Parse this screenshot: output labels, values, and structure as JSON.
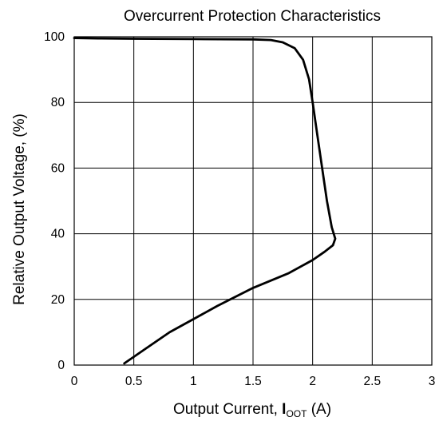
{
  "chart_data": {
    "type": "line",
    "title": "Overcurrent Protection Characteristics",
    "xlabel": "Output Current, ",
    "xlabel_bold": "I",
    "xlabel_sub": "OOT",
    "xlabel_unit": " (A)",
    "ylabel": "Relative Output Voltage, (%)",
    "xlim": [
      0,
      3
    ],
    "ylim": [
      0,
      100
    ],
    "x_ticks": [
      0,
      0.5,
      1,
      1.5,
      2,
      2.5,
      3
    ],
    "x_tick_labels": [
      "0",
      "0.5",
      "1",
      "1.5",
      "2",
      "2.5",
      "3"
    ],
    "y_ticks": [
      0,
      20,
      40,
      60,
      80,
      100
    ],
    "y_tick_labels": [
      "0",
      "20",
      "40",
      "60",
      "80",
      "100"
    ],
    "grid": true,
    "series": [
      {
        "points": [
          [
            0.0,
            99.6
          ],
          [
            0.2,
            99.5
          ],
          [
            0.5,
            99.4
          ],
          [
            1.0,
            99.3
          ],
          [
            1.5,
            99.2
          ],
          [
            1.65,
            99.0
          ],
          [
            1.75,
            98.3
          ],
          [
            1.85,
            96.5
          ],
          [
            1.92,
            93.0
          ],
          [
            1.97,
            87.0
          ],
          [
            2.0,
            80.0
          ],
          [
            2.04,
            70.0
          ],
          [
            2.08,
            60.0
          ],
          [
            2.12,
            50.0
          ],
          [
            2.16,
            42.0
          ],
          [
            2.19,
            38.5
          ],
          [
            2.17,
            36.5
          ],
          [
            2.1,
            34.5
          ],
          [
            2.0,
            32.0
          ],
          [
            1.8,
            28.0
          ],
          [
            1.5,
            23.5
          ],
          [
            1.2,
            18.0
          ],
          [
            1.0,
            14.0
          ],
          [
            0.8,
            10.0
          ],
          [
            0.6,
            5.0
          ],
          [
            0.42,
            0.5
          ]
        ]
      }
    ]
  }
}
